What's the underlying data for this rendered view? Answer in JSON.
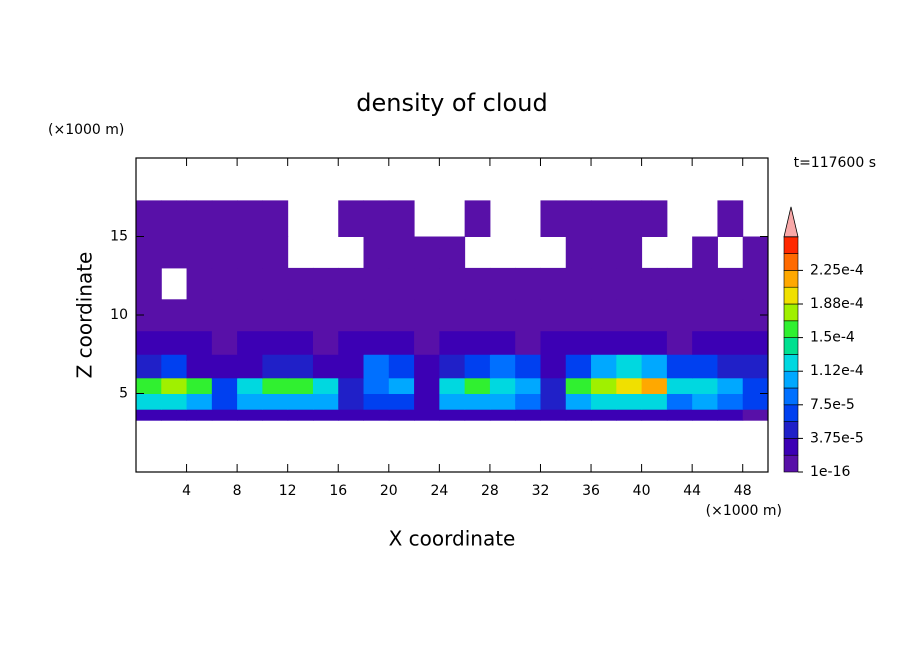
{
  "chart_data": {
    "type": "contour",
    "title": "density of cloud",
    "xlabel": "X coordinate",
    "ylabel": "Z coordinate",
    "x_unit": "(×1000 m)",
    "y_unit": "(×1000 m)",
    "annotation": "t=117600 s",
    "xlim": [
      0,
      50
    ],
    "ylim": [
      0,
      20
    ],
    "xticks": [
      4,
      8,
      12,
      16,
      20,
      24,
      28,
      32,
      36,
      40,
      44,
      48
    ],
    "yticks": [
      5,
      10,
      15
    ],
    "x_edges": [
      0,
      2,
      4,
      6,
      8,
      10,
      12,
      14,
      16,
      18,
      20,
      22,
      24,
      26,
      28,
      30,
      32,
      34,
      36,
      38,
      40,
      42,
      44,
      46,
      48,
      50
    ],
    "z_edges": [
      3.3,
      4,
      5,
      6,
      7.5,
      9,
      11,
      13,
      15,
      17.3
    ],
    "z": [
      [
        2.5e-05,
        2.5e-05,
        2.5e-05,
        2.5e-05,
        2.5e-05,
        2.5e-05,
        2.5e-05,
        2.5e-05,
        2.5e-05,
        2.5e-05,
        2.5e-05,
        2.5e-05,
        2.5e-05,
        2.5e-05,
        2.5e-05,
        2.5e-05,
        2.5e-05,
        2.5e-05,
        2.5e-05,
        2.5e-05,
        2.5e-05,
        2.5e-05,
        2.5e-05,
        2.5e-05,
        1e-05
      ],
      [
        0.00012,
        0.00012,
        0.00011,
        6e-05,
        0.0001,
        0.00011,
        0.00011,
        0.0001,
        4e-05,
        6e-05,
        7e-05,
        3e-05,
        0.0001,
        0.00011,
        0.00011,
        9e-05,
        5e-05,
        0.00011,
        0.00012,
        0.00013,
        0.00012,
        9e-05,
        0.0001,
        8e-05,
        6e-05
      ],
      [
        0.00016,
        0.00017,
        0.00015,
        7e-05,
        0.00013,
        0.00015,
        0.00015,
        0.00012,
        4e-05,
        9e-05,
        0.0001,
        3e-05,
        0.00013,
        0.00016,
        0.00013,
        0.00011,
        5e-05,
        0.00016,
        0.00018,
        0.0002,
        0.00021,
        0.00012,
        0.00013,
        0.00011,
        7e-05
      ],
      [
        4e-05,
        6e-05,
        3e-05,
        3e-05,
        3e-05,
        4e-05,
        4e-05,
        3e-05,
        3e-05,
        8e-05,
        7e-05,
        3e-05,
        4e-05,
        6e-05,
        9e-05,
        6e-05,
        3e-05,
        6e-05,
        0.0001,
        0.00012,
        0.0001,
        6e-05,
        7e-05,
        5e-05,
        5e-05
      ],
      [
        2e-05,
        2.5e-05,
        2e-05,
        1.5e-05,
        2e-05,
        2.5e-05,
        2e-05,
        1.5e-05,
        2e-05,
        2.5e-05,
        2e-05,
        1.5e-05,
        2e-05,
        2.5e-05,
        2e-05,
        1.5e-05,
        2e-05,
        2.5e-05,
        2.5e-05,
        2e-05,
        2e-05,
        1.5e-05,
        2e-05,
        2.5e-05,
        2e-05
      ],
      [
        1e-05,
        1e-05,
        1e-05,
        1e-05,
        1e-05,
        1e-05,
        1e-05,
        1e-05,
        1e-05,
        1e-05,
        1e-05,
        1e-05,
        1e-05,
        1e-05,
        1e-05,
        1e-05,
        1e-05,
        1e-05,
        1e-05,
        1e-05,
        1e-05,
        1e-05,
        1e-05,
        1e-05,
        1e-05
      ],
      [
        5e-06,
        null,
        5e-06,
        5e-06,
        5e-06,
        5e-06,
        5e-06,
        5e-06,
        5e-06,
        5e-06,
        5e-06,
        5e-06,
        5e-06,
        5e-06,
        5e-06,
        5e-06,
        5e-06,
        5e-06,
        5e-06,
        5e-06,
        5e-06,
        5e-06,
        5e-06,
        5e-06,
        5e-06
      ],
      [
        5e-06,
        5e-06,
        5e-06,
        5e-06,
        5e-06,
        5e-06,
        null,
        null,
        null,
        5e-06,
        5e-06,
        5e-06,
        5e-06,
        null,
        null,
        null,
        null,
        5e-06,
        5e-06,
        5e-06,
        null,
        null,
        5e-06,
        null,
        5e-06
      ],
      [
        5e-06,
        5e-06,
        5e-06,
        5e-06,
        5e-06,
        5e-06,
        null,
        null,
        5e-06,
        5e-06,
        5e-06,
        null,
        null,
        5e-06,
        null,
        null,
        5e-06,
        5e-06,
        5e-06,
        5e-06,
        5e-06,
        null,
        null,
        5e-06,
        null
      ]
    ],
    "levels": [
      1e-16,
      1.875e-05,
      3.75e-05,
      5.625e-05,
      7.5e-05,
      9.375e-05,
      0.0001125,
      0.00013125,
      0.00015,
      0.00016875,
      0.0001875,
      0.00020625,
      0.000225,
      0.00024375
    ],
    "level_colors": [
      "#5810a8",
      "#3c00b4",
      "#2020c8",
      "#0040f0",
      "#0070ff",
      "#00a8ff",
      "#00d8e0",
      "#00e090",
      "#30f030",
      "#a0f000",
      "#f0e000",
      "#ffa800",
      "#ff6a00",
      "#ff2800"
    ],
    "extend_color": "#f8a8a8",
    "colorbar_ticks": [
      {
        "value": 1e-16,
        "label": "1e-16"
      },
      {
        "value": 3.75e-05,
        "label": "3.75e-5"
      },
      {
        "value": 7.5e-05,
        "label": "7.5e-5"
      },
      {
        "value": 0.0001125,
        "label": "1.12e-4"
      },
      {
        "value": 0.00015,
        "label": "1.5e-4"
      },
      {
        "value": 0.0001875,
        "label": "1.88e-4"
      },
      {
        "value": 0.000225,
        "label": "2.25e-4"
      }
    ]
  }
}
